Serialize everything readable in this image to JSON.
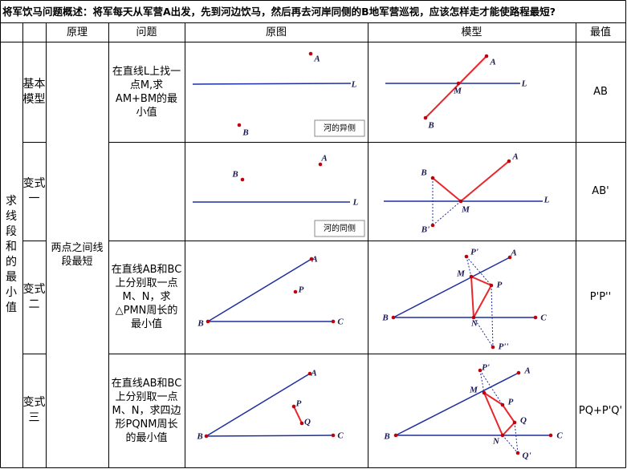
{
  "title": "将军饮马问题概述：将军每天从军营A出发，先到河边饮马，然后再去河岸同侧的B地军营巡视，应该怎样走才能使路程最短?",
  "headers": [
    "原理",
    "问题",
    "原图",
    "模型",
    "最值"
  ],
  "category": "求线段和的最小值",
  "principle": "两点之间线段最短",
  "rows": [
    {
      "variant": "基本模型",
      "problem": "在直线L上找一点M,求AM+BM的最小值",
      "original": {
        "labels": [
          "A",
          "L",
          "B"
        ],
        "note": "河的异侧"
      },
      "model": {
        "labels": [
          "A",
          "L",
          "M",
          "B"
        ]
      },
      "answer": "AB"
    },
    {
      "variant": "变式一",
      "problem": "",
      "original": {
        "labels": [
          "A",
          "B",
          "L"
        ],
        "note": "河的同侧"
      },
      "model": {
        "labels": [
          "B",
          "A",
          "L",
          "M",
          "B'"
        ]
      },
      "answer": "AB'"
    },
    {
      "variant": "变式二",
      "problem": "在直线AB和BC上分别取一点M、N，求△PMN周长的最小值",
      "original": {
        "labels": [
          "A",
          "P",
          "B",
          "C"
        ]
      },
      "model": {
        "labels": [
          "P'",
          "A",
          "M",
          "P",
          "B",
          "N",
          "C",
          "P''"
        ]
      },
      "answer": "P'P''"
    },
    {
      "variant": "变式三",
      "problem": "在直线AB和BC上分别取一点M、N，求四边形PQNM周长的最小值",
      "original": {
        "labels": [
          "A",
          "P",
          "Q",
          "B",
          "C"
        ]
      },
      "model": {
        "labels": [
          "P'",
          "A",
          "M",
          "P",
          "Q",
          "B",
          "N",
          "C",
          "Q'"
        ]
      },
      "answer": "PQ+P'Q'"
    }
  ]
}
